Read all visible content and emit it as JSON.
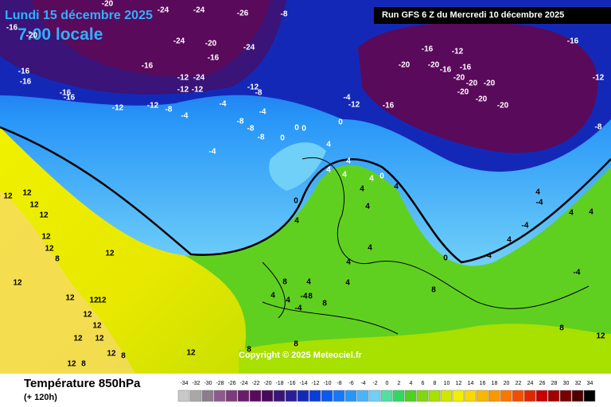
{
  "header": {
    "date": "Lundi 15 décembre 2025",
    "time": "7:00 locale",
    "run": "Run GFS 6 Z du Mercredi 10 décembre 2025"
  },
  "copyright": "Copyright © 2025 Meteociel.fr",
  "footer": {
    "title": "Température 850hPa",
    "lead": "(+ 120h)"
  },
  "scale": {
    "values": [
      -34,
      -32,
      -30,
      -28,
      -26,
      -24,
      -22,
      -20,
      -18,
      -16,
      -14,
      -12,
      -10,
      -8,
      -6,
      -4,
      -2,
      0,
      2,
      4,
      6,
      8,
      10,
      12,
      14,
      16,
      18,
      20,
      22,
      24,
      26,
      28,
      30,
      32,
      34
    ],
    "colors": [
      "#c8c8c8",
      "#a8a8a8",
      "#8c7c8c",
      "#8c5a8c",
      "#7a3c7a",
      "#6a1c6a",
      "#5a0a5a",
      "#4a0a5a",
      "#3a1478",
      "#2a1e98",
      "#1428b8",
      "#0a3cd8",
      "#0a5af0",
      "#1478f8",
      "#2896f8",
      "#4ab4f8",
      "#70d0f8",
      "#50e0a0",
      "#30d860",
      "#50d020",
      "#80d810",
      "#a8e000",
      "#d0e800",
      "#f0f000",
      "#f8d800",
      "#f8b800",
      "#f89800",
      "#f87800",
      "#f05000",
      "#e02800",
      "#c80000",
      "#a00000",
      "#780000",
      "#500000",
      "#000000"
    ]
  },
  "map_labels": [
    "-20",
    "-24",
    "-24",
    "-26",
    "-8",
    "-16",
    "-20",
    "-24",
    "-20",
    "-16",
    "-24",
    "-16",
    "-16",
    "-16",
    "-12",
    "-24",
    "-12",
    "-12",
    "-12",
    "-8",
    "-16",
    "-16",
    "-12",
    "-12",
    "-8",
    "-4",
    "-4",
    "-4",
    "-8",
    "-8",
    "-8",
    "-4",
    "-4",
    "-12",
    "0",
    "0",
    "0",
    "0",
    "-16",
    "-16",
    "-12",
    "-20",
    "-20",
    "-16",
    "-16",
    "-20",
    "-20",
    "-20",
    "-20",
    "-20",
    "-20",
    "-16",
    "-12",
    "-8",
    "4",
    "4",
    "4",
    "4",
    "4",
    "0",
    "4",
    "4",
    "4",
    "0",
    "4",
    "4",
    "-4",
    "4",
    "-4",
    "4",
    "4",
    "4",
    "4",
    "0",
    "4",
    "-4",
    "4",
    "8",
    "8",
    "4",
    "4",
    "-4",
    "4",
    "-4",
    "8",
    "8",
    "8",
    "12",
    "12",
    "12",
    "12",
    "12",
    "12",
    "12",
    "8",
    "12",
    "12",
    "12",
    "12",
    "12",
    "12",
    "12",
    "12",
    "12",
    "12",
    "8",
    "12",
    "8",
    "8",
    "8",
    "12"
  ]
}
